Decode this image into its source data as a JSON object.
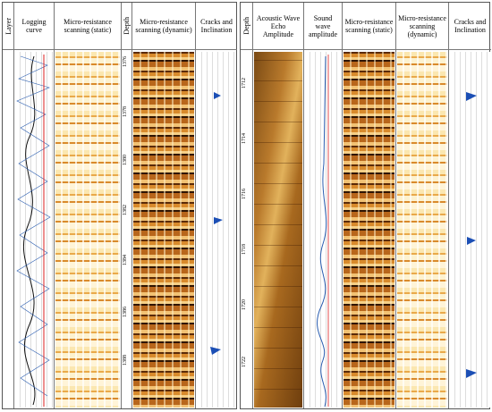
{
  "left_panel": {
    "headers": {
      "layer": "Layer",
      "logging_curve": "Logging curve",
      "static": "Micro-resistance scanning (static)",
      "depth": "Depth",
      "dynamic": "Micro-resistance scanning (dynamic)",
      "cracks": "Cracks and Inclination"
    },
    "depths": [
      "1376",
      "1378",
      "1380",
      "1382",
      "1384",
      "1386",
      "1388"
    ]
  },
  "right_panel": {
    "headers": {
      "depth": "Depth",
      "acoustic": "Acoustic Wave Echo Amplitude",
      "sound": "Sound wave amplitude",
      "static": "Micro-resistance scanning (static)",
      "dynamic": "Micro-resistance scanning (dynamic)",
      "cracks": "Cracks and Inclination"
    },
    "depths": [
      "1712",
      "1714",
      "1716",
      "1718",
      "1720",
      "1722"
    ]
  }
}
